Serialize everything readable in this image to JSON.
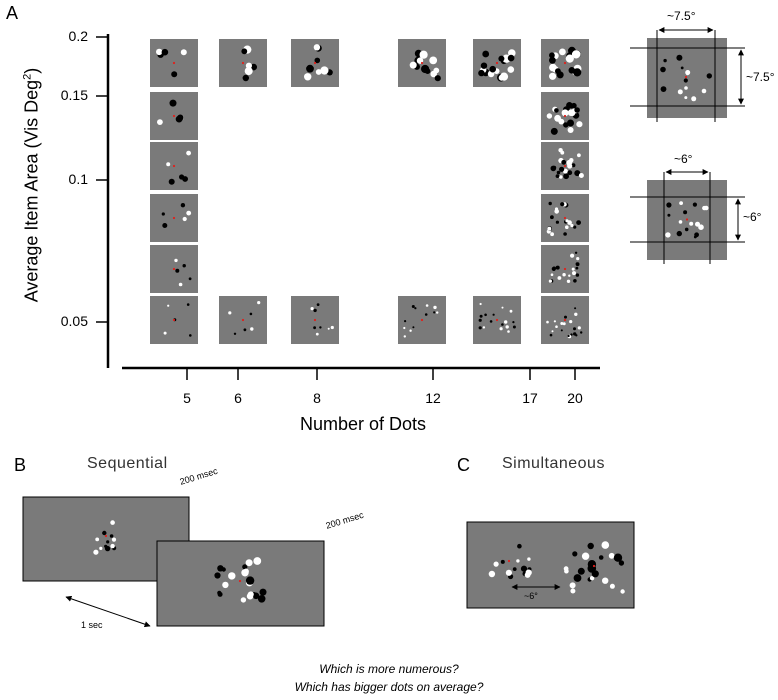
{
  "panel_a": {
    "label": "A",
    "y_axis": {
      "label_main": "Average Item Area (Vis Deg",
      "label_sup": "2",
      "label_close": ")",
      "ticks": [
        "0.2",
        "0.15",
        "0.1",
        "0.05"
      ]
    },
    "x_axis": {
      "label": "Number of Dots",
      "ticks": [
        "5",
        "6",
        "8",
        "12",
        "17",
        "20"
      ]
    },
    "legend_dims": {
      "outer_w": "~7.5°",
      "outer_h": "~7.5°",
      "inner_w": "~6°",
      "inner_h": "~6°"
    }
  },
  "panel_b": {
    "label": "B",
    "title": "Sequential",
    "duration_1": "200 msec",
    "duration_2": "200 msec",
    "isi": "1 sec"
  },
  "panel_c": {
    "label": "C",
    "title": "Simultaneous",
    "separation": "~6°"
  },
  "questions": {
    "q1": "Which is more numerous?",
    "q2": "Which has bigger dots on average?"
  },
  "colors": {
    "stimulus_bg": "#7a7a7a",
    "dot_dark": "#000000",
    "dot_light": "#ffffff",
    "fixation": "#e0201c"
  }
}
